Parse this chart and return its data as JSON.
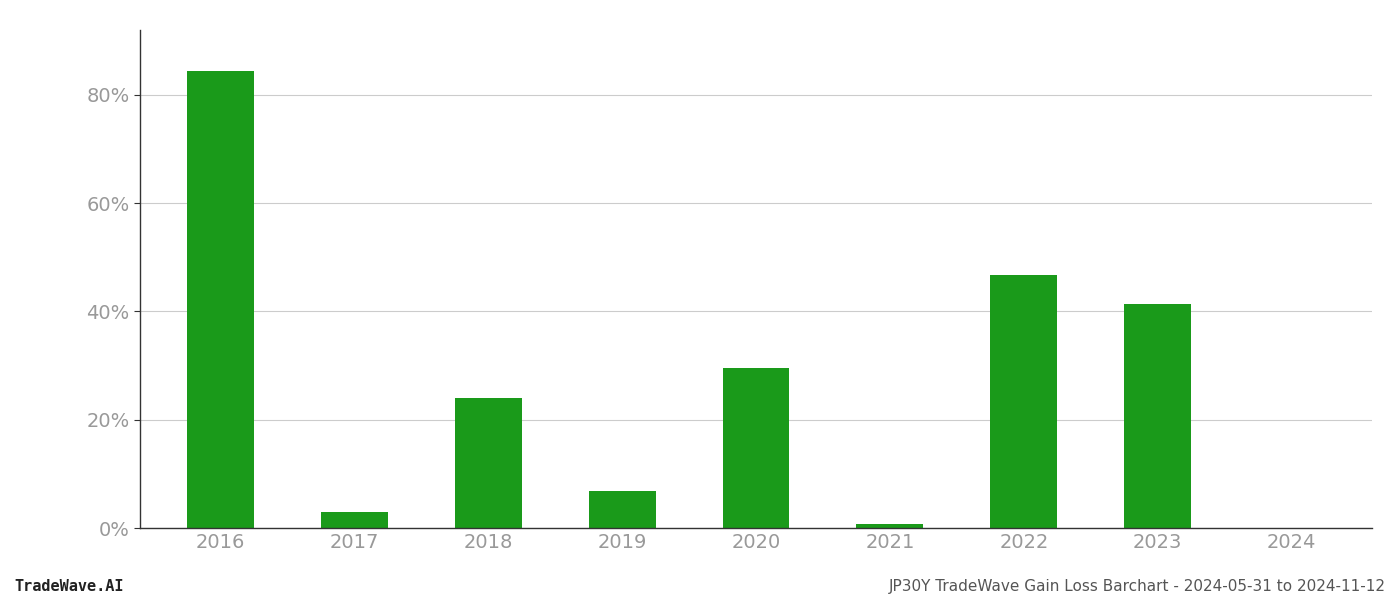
{
  "categories": [
    "2016",
    "2017",
    "2018",
    "2019",
    "2020",
    "2021",
    "2022",
    "2023",
    "2024"
  ],
  "values": [
    0.845,
    0.03,
    0.24,
    0.068,
    0.295,
    0.008,
    0.468,
    0.413,
    0.0
  ],
  "bar_color": "#1a9a1a",
  "background_color": "#ffffff",
  "grid_color": "#cccccc",
  "axis_color": "#333333",
  "tick_color": "#999999",
  "ylim": [
    0,
    0.92
  ],
  "yticks": [
    0.0,
    0.2,
    0.4,
    0.6,
    0.8
  ],
  "footer_left": "TradeWave.AI",
  "footer_right": "JP30Y TradeWave Gain Loss Barchart - 2024-05-31 to 2024-11-12",
  "footer_fontsize": 11,
  "tick_fontsize": 14,
  "bar_width": 0.5
}
